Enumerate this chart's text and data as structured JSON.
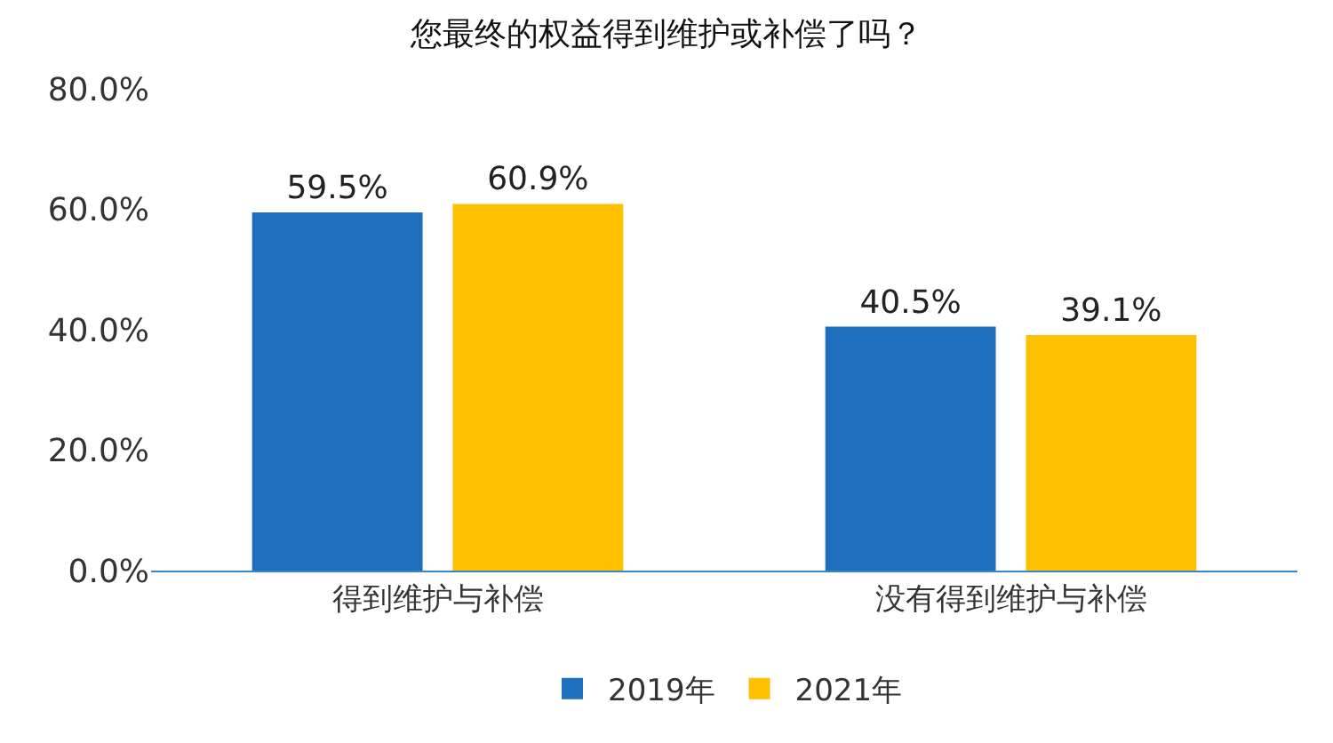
{
  "chart_data": {
    "type": "bar",
    "title": "您最终的权益得到维护或补偿了吗？",
    "categories": [
      "得到维护与补偿",
      "没有得到维护与补偿"
    ],
    "series": [
      {
        "name": "2019年",
        "color": "#1f6fbf",
        "values": [
          59.5,
          40.5
        ],
        "value_labels": [
          "59.5%",
          "40.5%"
        ]
      },
      {
        "name": "2021年",
        "color": "#ffc000",
        "values": [
          60.9,
          39.1
        ],
        "value_labels": [
          "60.9%",
          "39.1%"
        ]
      }
    ],
    "ylim": [
      0,
      80
    ],
    "yticks": [
      {
        "value": 0,
        "label": "0.0%"
      },
      {
        "value": 20,
        "label": "20.0%"
      },
      {
        "value": 40,
        "label": "40.0%"
      },
      {
        "value": 60,
        "label": "60.0%"
      },
      {
        "value": 80,
        "label": "80.0%"
      }
    ],
    "grid": false,
    "legend": "bottom"
  }
}
